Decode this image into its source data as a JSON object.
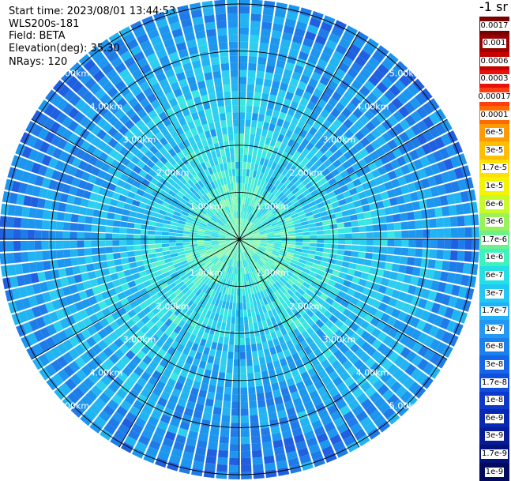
{
  "info": {
    "start_time": "Start time: 2023/08/01 13:44:53",
    "instrument": "WLS200s-181",
    "field": "Field: BETA",
    "elevation": "Elevation(deg): 35.30",
    "nrays": "NRays: 120"
  },
  "colorbar": {
    "unit_label": "-1 sr",
    "labels": [
      "0.0017",
      "0.001",
      "0.0006",
      "0.0003",
      "0.00017",
      "0.0001",
      "6e-5",
      "3e-5",
      "1.7e-5",
      "1e-5",
      "6e-6",
      "3e-6",
      "1.7e-6",
      "1e-6",
      "6e-7",
      "3e-7",
      "1.7e-7",
      "1e-7",
      "6e-8",
      "3e-8",
      "1.7e-8",
      "1e-8",
      "6e-9",
      "3e-9",
      "1.7e-9",
      "1e-9"
    ],
    "colors": [
      "#7a0000",
      "#990000",
      "#c60000",
      "#e81208",
      "#ff3d14",
      "#ff6a00",
      "#ff9a00",
      "#ffbf00",
      "#ffe000",
      "#f4f400",
      "#c8fa28",
      "#9af25a",
      "#6cf08c",
      "#3ef2be",
      "#22e0e6",
      "#20c8f6",
      "#22b0f8",
      "#2098f4",
      "#1a80ee",
      "#1466e8",
      "#104ede",
      "#0c38cc",
      "#0828b4",
      "#061c9a",
      "#04127c",
      "#020a5e"
    ]
  },
  "chart_data": {
    "type": "heatmap",
    "projection": "polar (PPI scan)",
    "field": "BETA",
    "n_rays": 120,
    "range_rings_km": [
      1,
      2,
      3,
      4,
      5
    ],
    "range_ring_labels": [
      "1.00km",
      "2.00km",
      "3.00km",
      "4.00km",
      "5.00km"
    ],
    "spoke_angles_deg": [
      0,
      30,
      60,
      90,
      120,
      150,
      180,
      210,
      240,
      270,
      300,
      330
    ],
    "max_range_km": 5.1,
    "colorscale": "log",
    "value_range": [
      1e-09,
      0.0017
    ],
    "pattern": "backscatter ~1e-6 near the lidar, ~1.7e-7 to 6e-7 at 1-2 km, ~3e-8 to 1.7e-7 at 3-5 km"
  }
}
